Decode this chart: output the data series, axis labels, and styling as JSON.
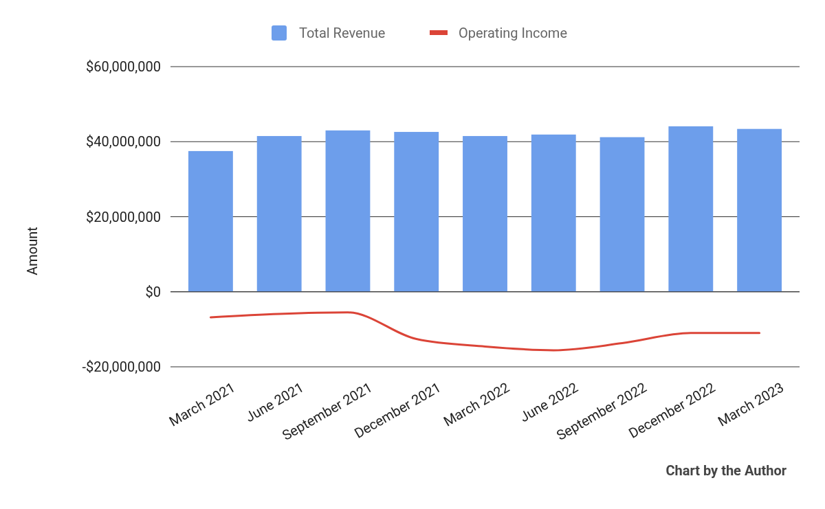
{
  "chart_data": {
    "type": "bar",
    "categories": [
      "March 2021",
      "June 2021",
      "September 2021",
      "December 2021",
      "March 2022",
      "June 2022",
      "September 2022",
      "December 2022",
      "March 2023"
    ],
    "series": [
      {
        "name": "Total Revenue",
        "color": "#6d9eeb",
        "values": [
          37500000,
          41500000,
          43000000,
          42600000,
          41500000,
          41900000,
          41200000,
          44100000,
          43400000
        ]
      },
      {
        "name": "Operating Income",
        "type": "line",
        "color": "#db4437",
        "values": [
          -6800000,
          -5900000,
          -5500000,
          -12600000,
          -14600000,
          -15600000,
          -13700000,
          -11000000,
          -11000000
        ]
      }
    ],
    "ylabel": "Amount",
    "ylim": [
      -20000000,
      60000000
    ],
    "yticks": [
      {
        "value": -20000000,
        "label": "-$20,000,000"
      },
      {
        "value": 0,
        "label": "$0"
      },
      {
        "value": 20000000,
        "label": "$20,000,000"
      },
      {
        "value": 40000000,
        "label": "$40,000,000"
      },
      {
        "value": 60000000,
        "label": "$60,000,000"
      }
    ],
    "grid": "y",
    "legend": "top",
    "annotations": [
      "Chart by the Author"
    ]
  }
}
